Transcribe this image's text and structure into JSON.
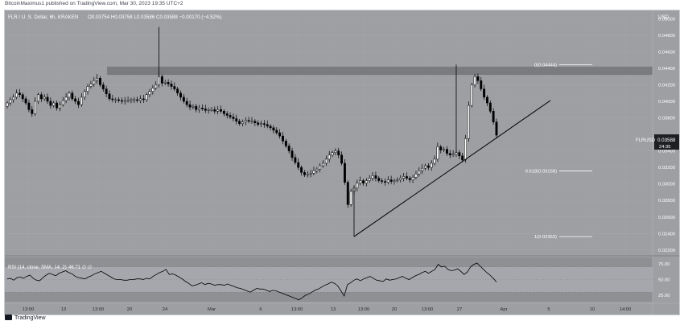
{
  "header": {
    "publisher": "BitcoinMaximus1 published on TradingView.com, Mar 30, 2023 19:35 UTC+2"
  },
  "footer": {
    "brand": "TradingView"
  },
  "colors": {
    "background": "#9e9fa3",
    "panel_alt": "#8f9094",
    "candle": "#000000",
    "candle_up_body": "#ffffff",
    "resistance_band": "#6e6f73",
    "line": "#000000",
    "fib": "#ffffff",
    "rsi_band": "#a9aaae",
    "text": "#ffffff"
  },
  "chart_data": {
    "type": "candlestick",
    "symbol_line": {
      "title": "FLR / U. S. Dollar, 6h, KRAKEN",
      "ohlc": "O0.03754 H0.03758 L0.03586 C0.03588 −0.00170 (−4.52%)"
    },
    "currency_label": "USD",
    "price_axis": {
      "range": [
        0.0214,
        0.051
      ],
      "ticks": [
        "0.05000",
        "0.04800",
        "0.04600",
        "0.04400",
        "0.04200",
        "0.04000",
        "0.03800",
        "0.03400",
        "0.03200",
        "0.03000",
        "0.02800",
        "0.02600",
        "0.02400",
        "0.02200"
      ]
    },
    "price_label": {
      "symbol": "FLRUSD",
      "price": "0.03588",
      "countdown": "24:35"
    },
    "time_axis": {
      "labels": [
        "13:00",
        "13",
        "13:00",
        "20",
        "24",
        "Mar",
        "6",
        "13:00",
        "13",
        "13:00",
        "20",
        "13:00",
        "27",
        "Apr",
        "5",
        "10",
        "14:00"
      ]
    },
    "fibonacci": [
      {
        "label": "0(0.04444)",
        "value": 0.04444
      },
      {
        "label": "0.618(0.03158)",
        "value": 0.03158
      },
      {
        "label": "1(0.02363)",
        "value": 0.02363
      }
    ],
    "resistance_zone": {
      "low": 0.0432,
      "high": 0.0442
    },
    "trendline": {
      "from": 0.02363,
      "to": 0.0401
    },
    "closes": [
      0.0398,
      0.0402,
      0.0405,
      0.041,
      0.0408,
      0.0403,
      0.0398,
      0.039,
      0.0385,
      0.04,
      0.0408,
      0.0403,
      0.0405,
      0.04,
      0.0395,
      0.0398,
      0.0392,
      0.0396,
      0.0401,
      0.0405,
      0.041,
      0.0403,
      0.04,
      0.0396,
      0.0405,
      0.0412,
      0.0418,
      0.0421,
      0.0425,
      0.0428,
      0.042,
      0.0415,
      0.0409,
      0.0403,
      0.0402,
      0.0402,
      0.0401,
      0.04,
      0.0401,
      0.0401,
      0.0402,
      0.0402,
      0.0401,
      0.0403,
      0.0402,
      0.0408,
      0.0412,
      0.0416,
      0.042,
      0.043,
      0.0422,
      0.0423,
      0.0421,
      0.0418,
      0.0415,
      0.041,
      0.0405,
      0.04,
      0.0396,
      0.0393,
      0.0394,
      0.039,
      0.0392,
      0.0391,
      0.0389,
      0.039,
      0.039,
      0.0388,
      0.039,
      0.0388,
      0.0385,
      0.0383,
      0.0381,
      0.0379,
      0.0376,
      0.0373,
      0.0375,
      0.0377,
      0.0376,
      0.0376,
      0.0374,
      0.0372,
      0.0373,
      0.0372,
      0.037,
      0.0368,
      0.0365,
      0.0362,
      0.0358,
      0.0352,
      0.0346,
      0.034,
      0.0332,
      0.0326,
      0.032,
      0.0314,
      0.0311,
      0.0312,
      0.0313,
      0.0316,
      0.0318,
      0.0322,
      0.0325,
      0.033,
      0.0335,
      0.0338,
      0.034,
      0.0335,
      0.0325,
      0.0302,
      0.0275,
      0.0291,
      0.0295,
      0.0301,
      0.0304,
      0.0301,
      0.0304,
      0.0307,
      0.031,
      0.0307,
      0.0304,
      0.0303,
      0.0302,
      0.0305,
      0.0303,
      0.0304,
      0.0305,
      0.0307,
      0.0309,
      0.0307,
      0.0305,
      0.0308,
      0.0312,
      0.0316,
      0.0319,
      0.0322,
      0.032,
      0.0325,
      0.033,
      0.0345,
      0.0341,
      0.0342,
      0.0337,
      0.0335,
      0.0336,
      0.0338,
      0.0334,
      0.0329,
      0.0355,
      0.0395,
      0.042,
      0.043,
      0.0425,
      0.0415,
      0.0405,
      0.0398,
      0.0388,
      0.0375,
      0.0359
    ],
    "rsi": {
      "label": "RSI (14, close, SMA, 14, 2)",
      "value": "46.71",
      "na1": "∅",
      "na2": "∅",
      "range": [
        15,
        85
      ],
      "ticks": [
        "75.00",
        "50.00",
        "25.00"
      ],
      "upper": 70,
      "lower": 30,
      "values": [
        51,
        52,
        49,
        53,
        54,
        52,
        55,
        57,
        52,
        49,
        48,
        53,
        57,
        60,
        58,
        56,
        60,
        62,
        64,
        61,
        59,
        55,
        53,
        52,
        51,
        54,
        56,
        59,
        61,
        63,
        60,
        57,
        54,
        51,
        50,
        50,
        49,
        49,
        50,
        50,
        51,
        51,
        50,
        52,
        51,
        55,
        58,
        61,
        63,
        66,
        58,
        59,
        57,
        54,
        51,
        47,
        44,
        40,
        41,
        43,
        45,
        42,
        44,
        43,
        41,
        42,
        42,
        41,
        43,
        41,
        39,
        37,
        36,
        34,
        32,
        30,
        33,
        36,
        35,
        35,
        33,
        31,
        33,
        32,
        30,
        28,
        26,
        24,
        22,
        20,
        18,
        21,
        25,
        27,
        30,
        33,
        35,
        38,
        41,
        43,
        46,
        44,
        40,
        32,
        24,
        42,
        45,
        49,
        51,
        48,
        51,
        53,
        55,
        52,
        49,
        48,
        47,
        51,
        49,
        50,
        51,
        53,
        55,
        52,
        50,
        53,
        56,
        58,
        61,
        63,
        60,
        63,
        66,
        74,
        70,
        71,
        66,
        64,
        65,
        67,
        63,
        58,
        62,
        70,
        74,
        76,
        71,
        66,
        61,
        57,
        52,
        46
      ],
      "signal_value": 50
    }
  }
}
